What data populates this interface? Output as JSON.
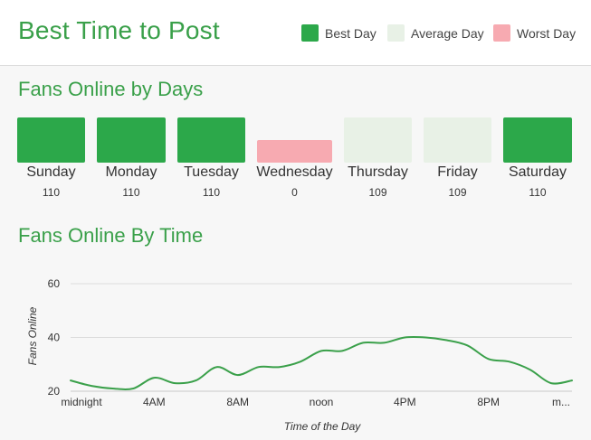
{
  "header": {
    "title": "Best Time to Post",
    "legend": [
      {
        "label": "Best Day",
        "color": "#2ca84a"
      },
      {
        "label": "Average Day",
        "color": "#e8f1e6"
      },
      {
        "label": "Worst Day",
        "color": "#f7aab1"
      }
    ]
  },
  "days_section": {
    "title": "Fans Online by Days",
    "days": [
      {
        "name": "Sunday",
        "value": "110",
        "category": "best"
      },
      {
        "name": "Monday",
        "value": "110",
        "category": "best"
      },
      {
        "name": "Tuesday",
        "value": "110",
        "category": "best"
      },
      {
        "name": "Wednesday",
        "value": "0",
        "category": "worst"
      },
      {
        "name": "Thursday",
        "value": "109",
        "category": "average"
      },
      {
        "name": "Friday",
        "value": "109",
        "category": "average"
      },
      {
        "name": "Saturday",
        "value": "110",
        "category": "best"
      }
    ]
  },
  "time_section": {
    "title": "Fans Online By Time"
  },
  "colors": {
    "accent": "#3aa04a",
    "line": "#3aa04a",
    "best": "#2ca84a",
    "average": "#e8f1e6",
    "worst": "#f7aab1"
  },
  "chart_data": {
    "type": "line",
    "title": "Fans Online By Time",
    "xlabel": "Time of the Day",
    "ylabel": "Fans Online",
    "ylim": [
      20,
      60
    ],
    "yticks": [
      20,
      40,
      60
    ],
    "x_tick_labels": [
      "midnight",
      "4AM",
      "8AM",
      "noon",
      "4PM",
      "8PM",
      "m..."
    ],
    "x": [
      0,
      1,
      2,
      3,
      4,
      5,
      6,
      7,
      8,
      9,
      10,
      11,
      12,
      13,
      14,
      15,
      16,
      17,
      18,
      19,
      20,
      21,
      22,
      23,
      24
    ],
    "series": [
      {
        "name": "Fans Online",
        "values": [
          24,
          22,
          21,
          21,
          25,
          23,
          24,
          29,
          26,
          29,
          29,
          31,
          35,
          35,
          38,
          38,
          40,
          40,
          39,
          37,
          32,
          31,
          28,
          23,
          24
        ]
      }
    ]
  }
}
